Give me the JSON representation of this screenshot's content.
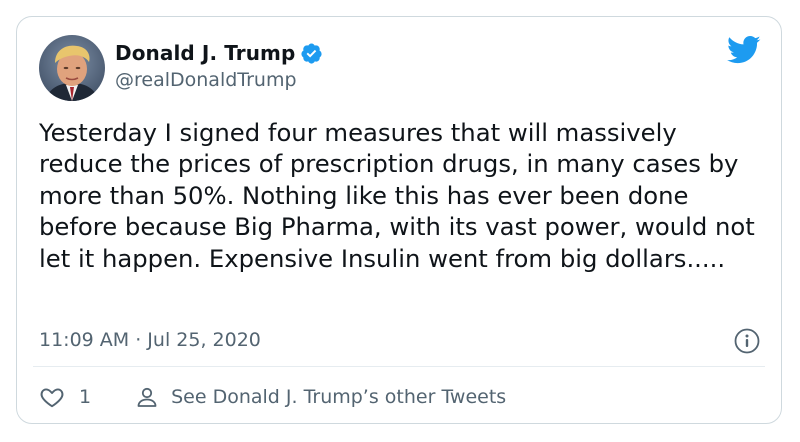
{
  "author": {
    "display_name": "Donald J. Trump",
    "handle": "@realDonaldTrump",
    "verified": true
  },
  "tweet": {
    "text": "Yesterday I signed four measures that will massively reduce the prices of prescription drugs, in many cases by more than 50%. Nothing like this has ever been done before because Big Pharma, with its vast power, would not let it happen. Expensive Insulin went from big dollars.....",
    "timestamp": "11:09 AM · Jul 25, 2020"
  },
  "actions": {
    "like_count": "1",
    "other_tweets_label": "See Donald J. Trump’s other Tweets"
  },
  "icons": {
    "logo": "twitter-bird-icon",
    "verified": "verified-badge-icon",
    "info": "info-icon",
    "like": "heart-icon",
    "profile": "user-icon"
  },
  "colors": {
    "brand": "#1d9bf0",
    "text": "#0f1419",
    "secondary": "#536471",
    "border": "#cfd9de"
  }
}
